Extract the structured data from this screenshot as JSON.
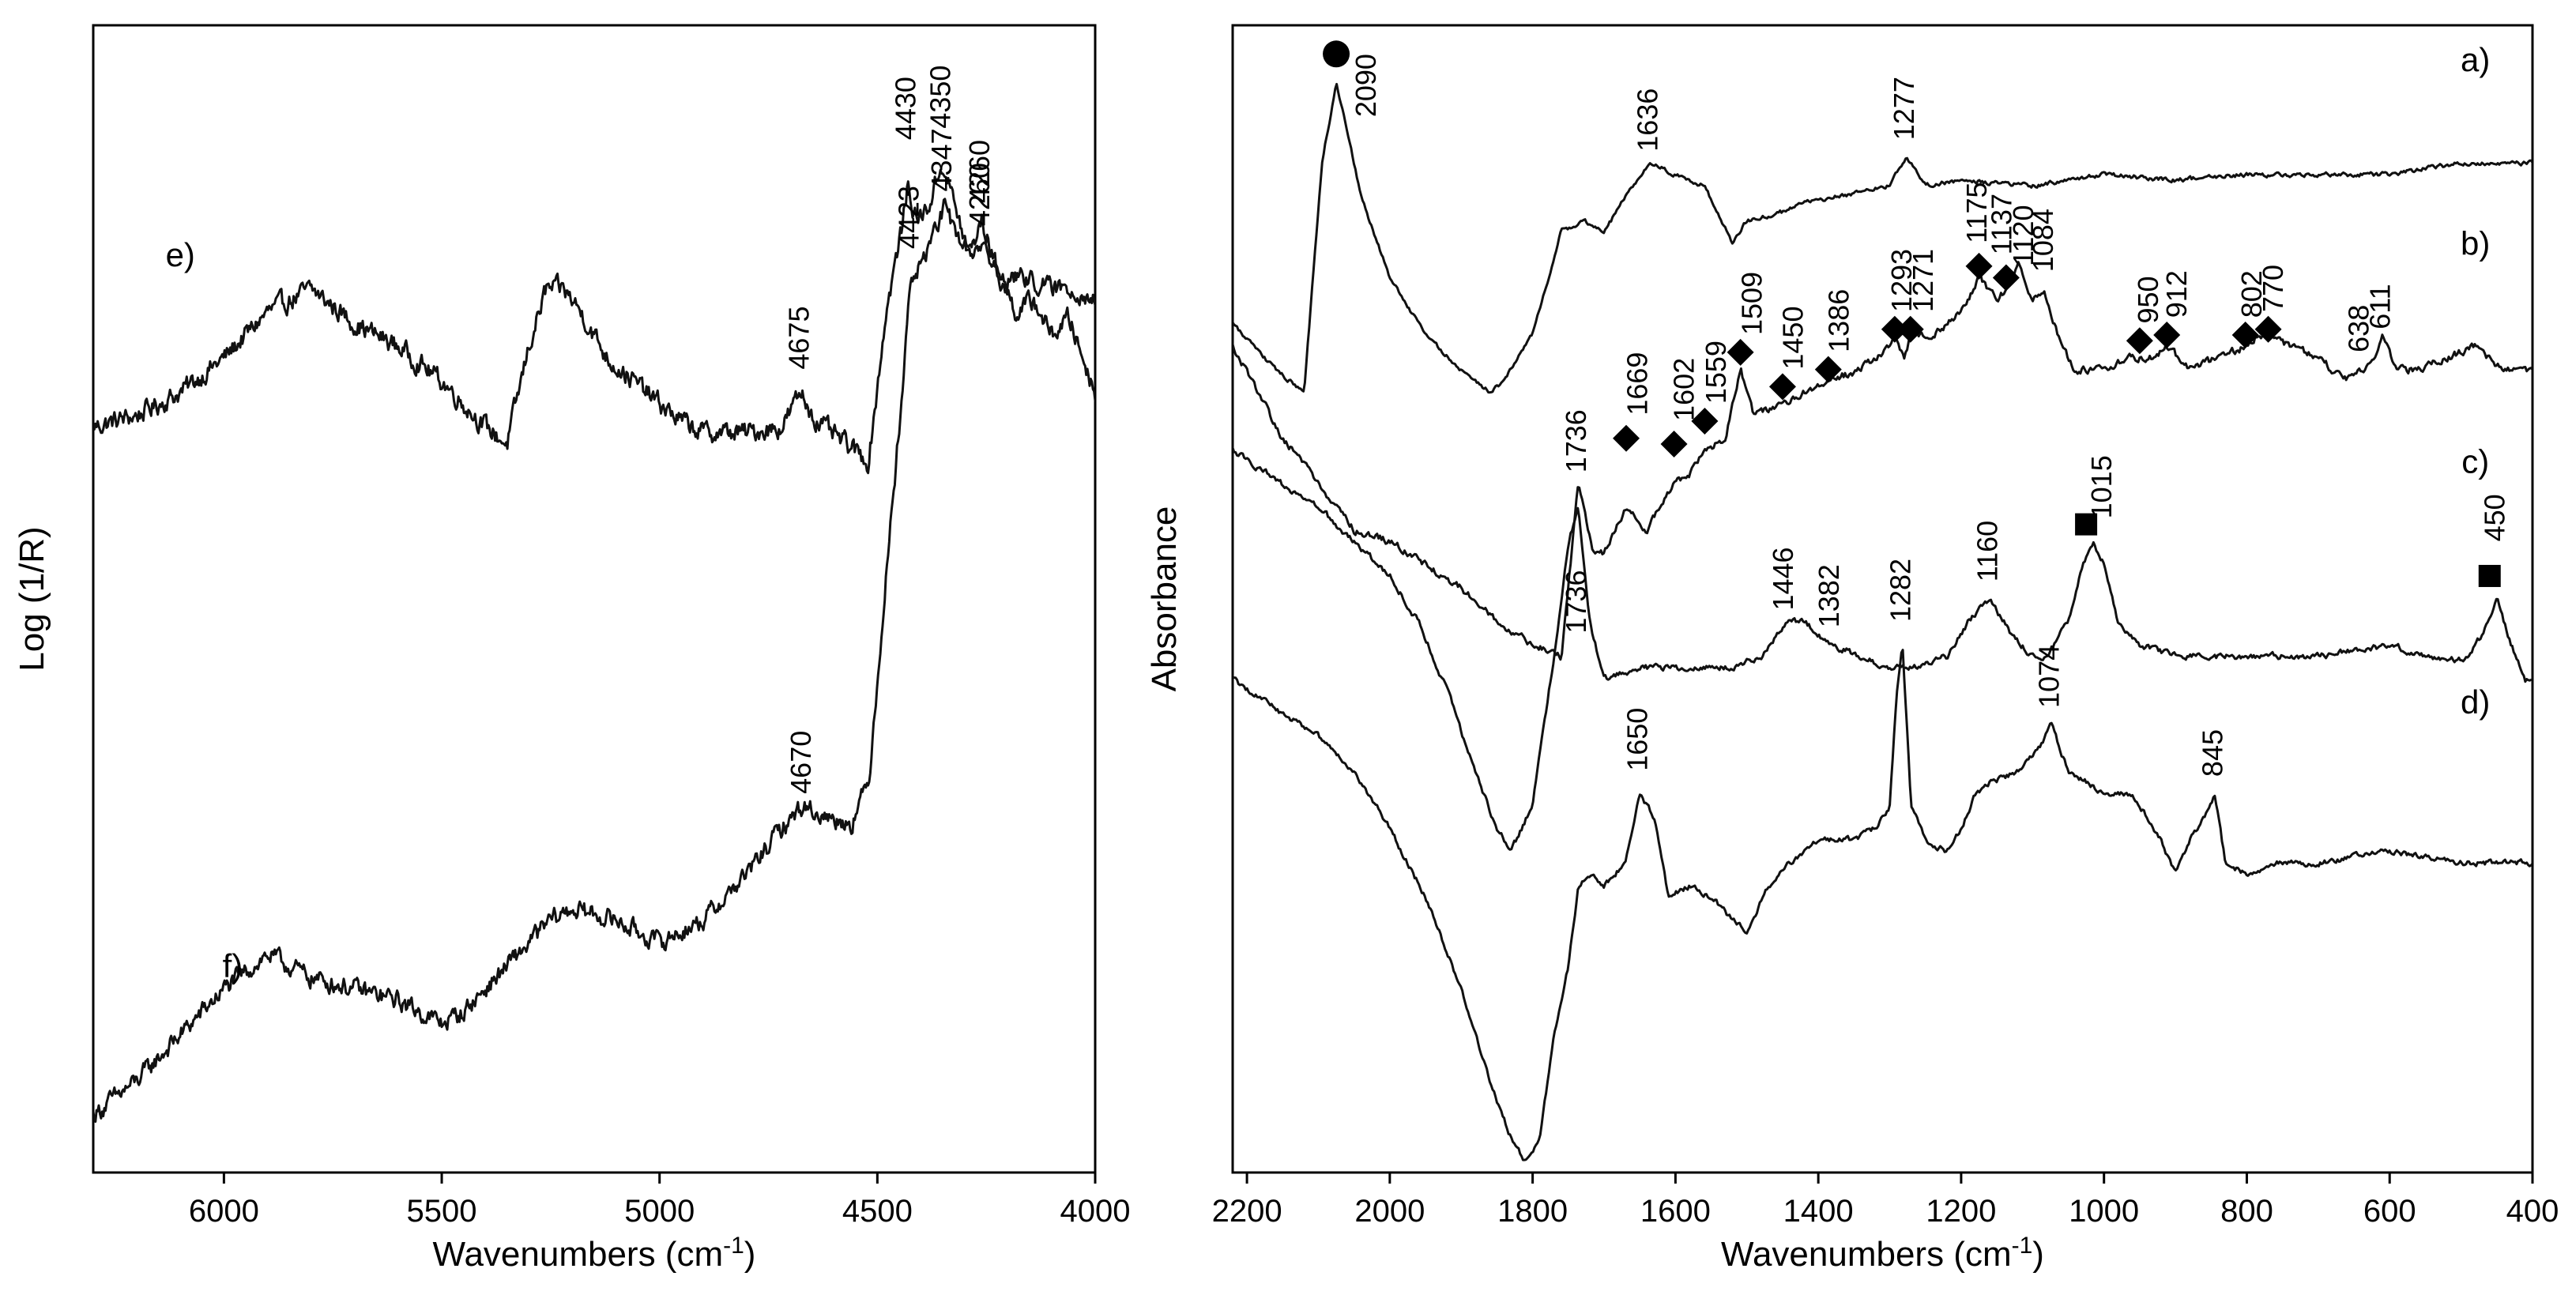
{
  "chart_data": [
    {
      "type": "line",
      "title": "",
      "xlabel_text": "Wavenumbers (cm",
      "xlabel_sup": "-1",
      "xlabel_close": ")",
      "ylabel": "Log (1/R)",
      "xlim": [
        6300,
        4000
      ],
      "ylim": [
        0,
        100
      ],
      "grid": false,
      "x_ticks": [
        6000,
        5500,
        5000,
        4500,
        4000
      ],
      "series": [
        {
          "name": "e)",
          "label_pos": [
            6100,
            79
          ],
          "x": [
            6300,
            6200,
            6100,
            6000,
            5900,
            5800,
            5700,
            5600,
            5500,
            5450,
            5400,
            5350,
            5300,
            5260,
            5220,
            5180,
            5120,
            5060,
            5000,
            4950,
            4900,
            4850,
            4800,
            4720,
            4675,
            4640,
            4590,
            4520,
            4480,
            4445,
            4430,
            4410,
            4385,
            4350,
            4320,
            4290,
            4260,
            4220,
            4180,
            4140,
            4100,
            4060,
            4000
          ],
          "y": [
            65,
            66,
            68,
            71,
            75,
            77,
            74,
            72,
            69,
            67,
            65,
            63.5,
            72,
            77,
            77,
            75,
            71,
            69,
            67,
            65.5,
            64.5,
            64.5,
            64.5,
            65,
            68,
            65.5,
            64,
            62,
            75,
            82,
            86,
            83,
            84,
            88,
            84,
            80,
            83,
            78,
            75,
            76,
            73,
            74.5,
            68
          ],
          "noise": 1.6
        },
        {
          "name": "f)",
          "label_pos": [
            5980,
            17
          ],
          "x": [
            6300,
            6200,
            6100,
            6000,
            5900,
            5800,
            5700,
            5600,
            5500,
            5450,
            5350,
            5250,
            5200,
            5150,
            5100,
            5000,
            4900,
            4800,
            4720,
            4670,
            4620,
            4560,
            4520,
            4480,
            4450,
            4423,
            4400,
            4370,
            4347,
            4320,
            4290,
            4260,
            4220,
            4160,
            4100,
            4050,
            4000
          ],
          "y": [
            5,
            8,
            12,
            16,
            19,
            17,
            16,
            15,
            13,
            14,
            18,
            22,
            23,
            22.5,
            22,
            20,
            22,
            26,
            30,
            32,
            31,
            30.5,
            34,
            52,
            65,
            78,
            79,
            82,
            84,
            82,
            80,
            81,
            78,
            78,
            77,
            77,
            76
          ],
          "noise": 1.5
        }
      ],
      "annotations": [
        {
          "text": "4675",
          "x": 4675,
          "y": 70
        },
        {
          "text": "4430",
          "x": 4430,
          "y": 90
        },
        {
          "text": "4350",
          "x": 4350,
          "y": 91
        },
        {
          "text": "4260",
          "x": 4260,
          "y": 84.5
        },
        {
          "text": "4670",
          "x": 4670,
          "y": 33
        },
        {
          "text": "4423",
          "x": 4423,
          "y": 80.5
        },
        {
          "text": "4347",
          "x": 4347,
          "y": 85.5
        },
        {
          "text": "4260",
          "x": 4260,
          "y": 82.5
        }
      ]
    },
    {
      "type": "line",
      "title": "",
      "xlabel_text": "Wavenumbers (cm",
      "xlabel_sup": "-1",
      "xlabel_close": ")",
      "ylabel": "Absorbance",
      "xlim": [
        2220,
        400
      ],
      "ylim": [
        0,
        100
      ],
      "grid": false,
      "x_ticks": [
        2200,
        2000,
        1800,
        1600,
        1400,
        1200,
        1000,
        800,
        600,
        400
      ],
      "series": [
        {
          "name": "a)",
          "label_pos": [
            480,
            96
          ],
          "x": [
            2220,
            2160,
            2120,
            2095,
            2075,
            2060,
            2040,
            2000,
            1950,
            1900,
            1860,
            1840,
            1800,
            1760,
            1730,
            1700,
            1660,
            1636,
            1600,
            1560,
            1535,
            1520,
            1500,
            1460,
            1420,
            1380,
            1340,
            1300,
            1277,
            1250,
            1200,
            1100,
            1000,
            900,
            800,
            700,
            600,
            500,
            400
          ],
          "y": [
            74,
            70,
            68,
            88,
            95,
            91,
            85,
            78,
            73,
            70,
            68,
            69,
            73,
            82,
            83,
            82,
            86,
            88,
            87,
            86,
            83,
            81,
            83,
            83.5,
            84.5,
            85,
            85.5,
            86,
            88.5,
            86,
            86.5,
            86,
            87,
            86.5,
            87,
            87,
            87,
            88,
            88
          ],
          "noise": 0.35
        },
        {
          "name": "b)",
          "label_pos": [
            480,
            80
          ],
          "x": [
            2220,
            2150,
            2100,
            2050,
            2000,
            1950,
            1900,
            1850,
            1800,
            1760,
            1736,
            1715,
            1700,
            1669,
            1640,
            1602,
            1580,
            1559,
            1530,
            1509,
            1490,
            1450,
            1420,
            1386,
            1340,
            1300,
            1293,
            1280,
            1271,
            1240,
            1200,
            1175,
            1150,
            1137,
            1120,
            1100,
            1084,
            1060,
            1040,
            1000,
            970,
            950,
            930,
            912,
            880,
            840,
            802,
            785,
            770,
            740,
            700,
            660,
            638,
            620,
            611,
            590,
            560,
            520,
            480,
            440,
            400
          ],
          "y": [
            72,
            64,
            60,
            56,
            55,
            53,
            51,
            48,
            46,
            45,
            60,
            54,
            54,
            58,
            56,
            60,
            61,
            63,
            64,
            70,
            66,
            67,
            68,
            69,
            70,
            72,
            73,
            71,
            73,
            73,
            75,
            78,
            76,
            77,
            79,
            76,
            77,
            72,
            70,
            70,
            71,
            71,
            71,
            72,
            70,
            71,
            72,
            73,
            73,
            72,
            71,
            69,
            70,
            71,
            73,
            70,
            70,
            71,
            72,
            70,
            70
          ],
          "noise": 0.6
        },
        {
          "name": "c)",
          "label_pos": [
            480,
            61
          ],
          "x": [
            2220,
            2150,
            2100,
            2050,
            2000,
            1960,
            1920,
            1880,
            1850,
            1830,
            1800,
            1770,
            1750,
            1736,
            1720,
            1700,
            1650,
            1600,
            1560,
            1520,
            1480,
            1446,
            1420,
            1382,
            1340,
            1300,
            1260,
            1220,
            1190,
            1160,
            1130,
            1100,
            1080,
            1050,
            1030,
            1015,
            1000,
            980,
            950,
            900,
            850,
            800,
            750,
            700,
            650,
            600,
            550,
            520,
            490,
            470,
            450,
            430,
            410,
            400
          ],
          "y": [
            63,
            60,
            58,
            55,
            52,
            48,
            42,
            35,
            30,
            28,
            32,
            45,
            55,
            58,
            48,
            43,
            44,
            44,
            44,
            44,
            45,
            48,
            48,
            46,
            45,
            44,
            44,
            45,
            48,
            50,
            47,
            45,
            45,
            48,
            53,
            55,
            53,
            48,
            46,
            45,
            45,
            45,
            45,
            45,
            45.5,
            46,
            45,
            44.5,
            45,
            47,
            50,
            46,
            43,
            43
          ],
          "noise": 0.5
        },
        {
          "name": "d)",
          "label_pos": [
            480,
            40
          ],
          "x": [
            2220,
            2150,
            2100,
            2050,
            2000,
            1950,
            1900,
            1860,
            1830,
            1810,
            1800,
            1790,
            1770,
            1750,
            1736,
            1720,
            1700,
            1670,
            1650,
            1630,
            1610,
            1580,
            1550,
            1520,
            1500,
            1470,
            1440,
            1400,
            1350,
            1320,
            1300,
            1290,
            1282,
            1270,
            1250,
            1220,
            1200,
            1180,
            1160,
            1120,
            1090,
            1074,
            1050,
            1000,
            960,
            920,
            900,
            880,
            860,
            845,
            830,
            800,
            760,
            700,
            650,
            600,
            550,
            500,
            450,
            400
          ],
          "y": [
            43,
            40,
            38,
            35,
            30,
            24,
            16,
            8,
            3,
            1,
            2,
            3,
            12,
            18,
            25,
            26,
            25,
            27,
            33,
            31,
            24,
            25,
            24,
            22,
            21,
            25,
            27,
            29,
            29,
            30,
            32,
            42,
            46,
            32,
            29,
            28,
            30,
            33,
            34,
            35,
            37,
            39,
            35,
            33,
            33,
            29,
            26,
            29,
            31,
            33,
            27,
            26,
            27,
            27,
            27.5,
            28,
            27.5,
            27,
            27,
            27
          ],
          "noise": 0.45
        }
      ],
      "markers": [
        {
          "shape": "circle",
          "x": 2075,
          "y": 97.5
        },
        {
          "shape": "diamond",
          "x": 1669,
          "y": 64
        },
        {
          "shape": "diamond",
          "x": 1602,
          "y": 63.5
        },
        {
          "shape": "diamond",
          "x": 1559,
          "y": 65.5
        },
        {
          "shape": "diamond",
          "x": 1509,
          "y": 71.5
        },
        {
          "shape": "diamond",
          "x": 1450,
          "y": 68.5
        },
        {
          "shape": "diamond",
          "x": 1386,
          "y": 70
        },
        {
          "shape": "diamond",
          "x": 1293,
          "y": 73.5
        },
        {
          "shape": "diamond",
          "x": 1271,
          "y": 73.5
        },
        {
          "shape": "diamond",
          "x": 1175,
          "y": 79
        },
        {
          "shape": "diamond",
          "x": 1137,
          "y": 78
        },
        {
          "shape": "diamond",
          "x": 950,
          "y": 72.5
        },
        {
          "shape": "diamond",
          "x": 912,
          "y": 73
        },
        {
          "shape": "diamond",
          "x": 802,
          "y": 73
        },
        {
          "shape": "diamond",
          "x": 770,
          "y": 73.5
        },
        {
          "shape": "square",
          "x": 1025,
          "y": 56.5
        },
        {
          "shape": "square",
          "x": 460,
          "y": 52
        }
      ],
      "annotations": [
        {
          "text": "2090",
          "x": 2030,
          "y": 92
        },
        {
          "text": "1636",
          "x": 1636,
          "y": 89
        },
        {
          "text": "1277",
          "x": 1277,
          "y": 90
        },
        {
          "text": "1669",
          "x": 1650,
          "y": 66
        },
        {
          "text": "1602",
          "x": 1585,
          "y": 65.5
        },
        {
          "text": "1559",
          "x": 1540,
          "y": 67
        },
        {
          "text": "1509",
          "x": 1490,
          "y": 73
        },
        {
          "text": "1450",
          "x": 1432,
          "y": 70
        },
        {
          "text": "1386",
          "x": 1368,
          "y": 71.5
        },
        {
          "text": "1293",
          "x": 1280,
          "y": 75
        },
        {
          "text": "1271",
          "x": 1250,
          "y": 75
        },
        {
          "text": "1175",
          "x": 1175,
          "y": 81
        },
        {
          "text": "1137",
          "x": 1140,
          "y": 80
        },
        {
          "text": "1120",
          "x": 1110,
          "y": 79
        },
        {
          "text": "1084",
          "x": 1082,
          "y": 78.5
        },
        {
          "text": "950",
          "x": 935,
          "y": 74
        },
        {
          "text": "912",
          "x": 895,
          "y": 74.5
        },
        {
          "text": "802",
          "x": 790,
          "y": 74.5
        },
        {
          "text": "770",
          "x": 760,
          "y": 75
        },
        {
          "text": "638",
          "x": 640,
          "y": 71.5
        },
        {
          "text": "611",
          "x": 610,
          "y": 73.5
        },
        {
          "text": "1736",
          "x": 1736,
          "y": 61
        },
        {
          "text": "1015",
          "x": 1000,
          "y": 57
        },
        {
          "text": "450",
          "x": 450,
          "y": 55
        },
        {
          "text": "1160",
          "x": 1160,
          "y": 51.5
        },
        {
          "text": "1446",
          "x": 1446,
          "y": 49
        },
        {
          "text": "1382",
          "x": 1382,
          "y": 47.5
        },
        {
          "text": "1736",
          "x": 1736,
          "y": 47
        },
        {
          "text": "1650",
          "x": 1650,
          "y": 35
        },
        {
          "text": "1282",
          "x": 1282,
          "y": 48
        },
        {
          "text": "1074",
          "x": 1074,
          "y": 40.5
        },
        {
          "text": "845",
          "x": 845,
          "y": 34.5
        }
      ]
    }
  ]
}
